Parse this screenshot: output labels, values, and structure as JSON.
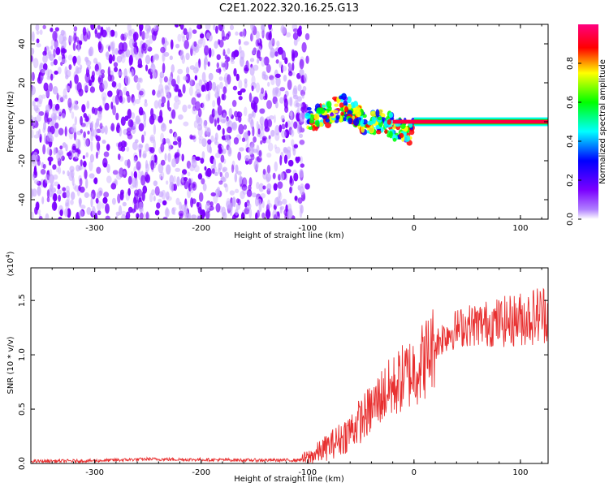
{
  "title": "C2E1.2022.320.16.25.G13",
  "colors": {
    "snr_line": "#e83030",
    "axis": "#000000",
    "colormap": [
      "#ffffff",
      "#7b00ff",
      "#0000ff",
      "#00ffff",
      "#00ff00",
      "#ffff00",
      "#ff0000",
      "#ff0080"
    ]
  },
  "chart_data": [
    {
      "type": "heatmap",
      "title": "",
      "xlabel": "Height of straight line (km)",
      "ylabel": "Frequency (Hz)",
      "xlim": [
        -360,
        126
      ],
      "ylim": [
        -50,
        50
      ],
      "xticks": [
        -300,
        -200,
        -100,
        0,
        100
      ],
      "xtick_labels": [
        "-300",
        "-200",
        "-100",
        "0",
        "100"
      ],
      "yticks": [
        -40,
        -20,
        0,
        20,
        40
      ],
      "ytick_labels": [
        "-40",
        "-20",
        "0",
        "20",
        "40"
      ],
      "colorbar": {
        "label": "Normalized spectral amplitude",
        "range": [
          0,
          1
        ],
        "ticks": [
          0,
          0.2,
          0.4,
          0.6,
          0.8
        ],
        "tick_labels": [
          "0.0",
          "0.2",
          "0.4",
          "0.6",
          "0.8"
        ]
      },
      "regions": [
        {
          "x": [
            -360,
            -100
          ],
          "y": [
            -50,
            50
          ],
          "description": "noise",
          "amplitude": [
            0.05,
            0.25
          ]
        },
        {
          "x": [
            -100,
            0
          ],
          "y": [
            -10,
            10
          ],
          "description": "signal onset",
          "amplitude": [
            0.2,
            0.9
          ]
        },
        {
          "x": [
            0,
            126
          ],
          "y": [
            -1,
            1
          ],
          "description": "carrier line",
          "amplitude": [
            0.85,
            1.0
          ]
        }
      ]
    },
    {
      "type": "line",
      "title": "",
      "xlabel": "Height of straight line (km)",
      "ylabel": "SNR (10 * v/v)",
      "y_multiplier": "(x10^4)",
      "xlim": [
        -360,
        126
      ],
      "ylim": [
        0,
        18000
      ],
      "xticks": [
        -300,
        -200,
        -100,
        0,
        100
      ],
      "xtick_labels": [
        "-300",
        "-200",
        "-100",
        "0",
        "100"
      ],
      "yticks": [
        0,
        5000,
        10000,
        15000
      ],
      "ytick_labels": [
        "0.0",
        "0.5",
        "1.0",
        "1.5"
      ],
      "series": [
        {
          "x": [
            -360,
            -300,
            -250,
            -200,
            -150,
            -110,
            -100,
            -90,
            -80,
            -70,
            -60,
            -50,
            -40,
            -30,
            -20,
            -10,
            0,
            10,
            20,
            30,
            40,
            50,
            60,
            70,
            80,
            90,
            100,
            110,
            120,
            126
          ],
          "y": [
            200,
            250,
            400,
            350,
            300,
            300,
            500,
            1000,
            1600,
            2200,
            3000,
            4000,
            5000,
            6300,
            7000,
            7900,
            8600,
            9600,
            11000,
            11900,
            12400,
            12700,
            12800,
            12900,
            13000,
            13100,
            13300,
            13500,
            13800,
            13900
          ]
        }
      ]
    }
  ]
}
